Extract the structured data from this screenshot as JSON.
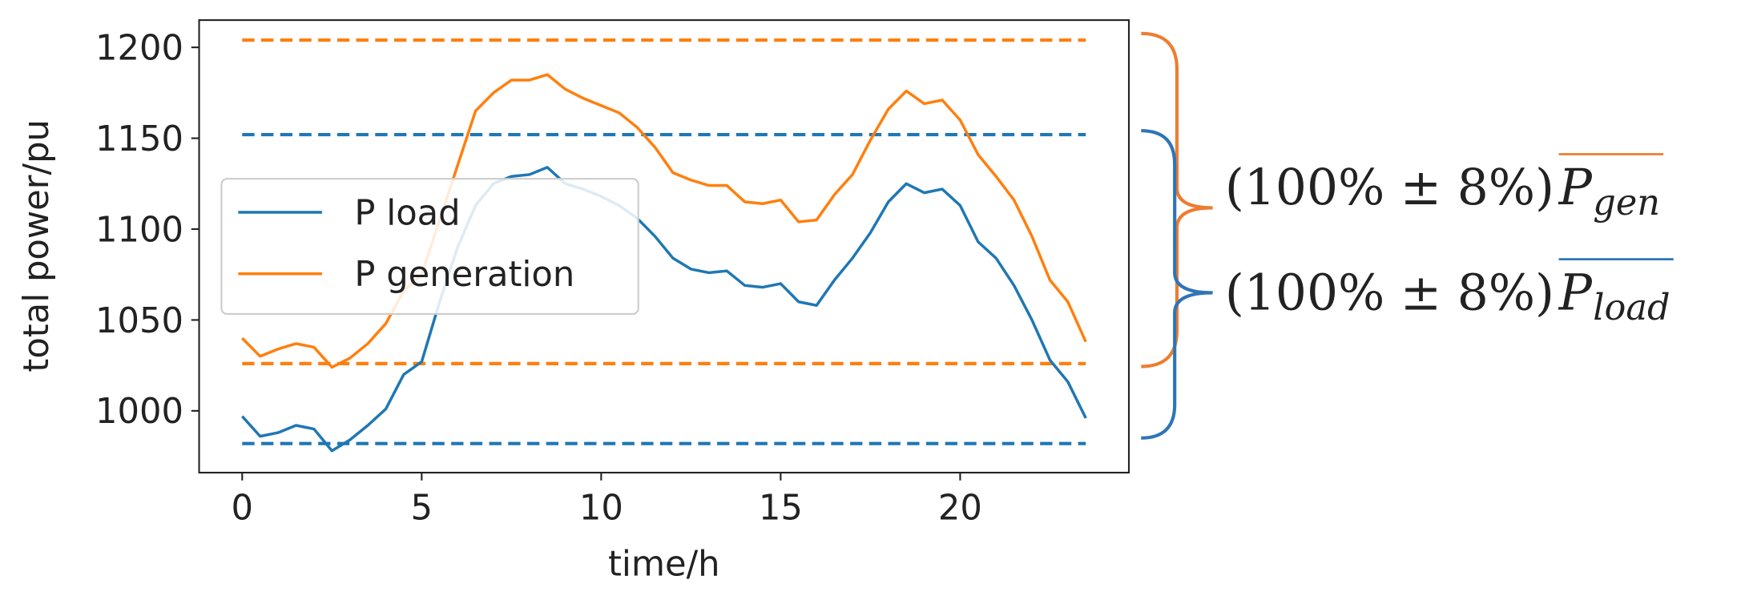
{
  "chart_data": {
    "type": "line",
    "xlabel": "time/h",
    "ylabel": "total power/pu",
    "x": [
      0,
      0.5,
      1,
      1.5,
      2,
      2.5,
      3,
      3.5,
      4,
      4.5,
      5,
      5.5,
      6,
      6.5,
      7,
      7.5,
      8,
      8.5,
      9,
      9.5,
      10,
      10.5,
      11,
      11.5,
      12,
      12.5,
      13,
      13.5,
      14,
      14.5,
      15,
      15.5,
      16,
      16.5,
      17,
      17.5,
      18,
      18.5,
      19,
      19.5,
      20,
      20.5,
      21,
      21.5,
      22,
      22.5,
      23,
      23.5
    ],
    "series": [
      {
        "name": "P load",
        "color": "#1f77b4",
        "values": [
          997,
          986,
          988,
          992,
          990,
          978,
          984,
          992,
          1001,
          1020,
          1027,
          1060,
          1090,
          1113,
          1125,
          1129,
          1130,
          1134,
          1125,
          1122,
          1118,
          1113,
          1106,
          1096,
          1084,
          1078,
          1076,
          1077,
          1069,
          1068,
          1070,
          1060,
          1058,
          1072,
          1084,
          1098,
          1115,
          1125,
          1120,
          1122,
          1113,
          1093,
          1084,
          1069,
          1050,
          1028,
          1016,
          996
        ]
      },
      {
        "name": "P generation",
        "color": "#ff7f0e",
        "values": [
          1040,
          1030,
          1034,
          1037,
          1035,
          1024,
          1029,
          1037,
          1048,
          1066,
          1075,
          1105,
          1135,
          1165,
          1175,
          1182,
          1182,
          1185,
          1177,
          1172,
          1168,
          1164,
          1156,
          1145,
          1131,
          1127,
          1124,
          1124,
          1115,
          1114,
          1116,
          1104,
          1105,
          1119,
          1130,
          1149,
          1166,
          1176,
          1169,
          1171,
          1160,
          1141,
          1129,
          1116,
          1096,
          1072,
          1060,
          1038
        ]
      }
    ],
    "hlines": [
      {
        "value": 1204,
        "color": "#ff7f0e",
        "style": "dashed"
      },
      {
        "value": 1152,
        "color": "#1f77b4",
        "style": "dashed"
      },
      {
        "value": 1026,
        "color": "#ff7f0e",
        "style": "dashed"
      },
      {
        "value": 982,
        "color": "#1f77b4",
        "style": "dashed"
      }
    ],
    "xlim": [
      -1.2,
      24.7
    ],
    "ylim": [
      966,
      1215
    ],
    "xticks": [
      0,
      5,
      10,
      15,
      20
    ],
    "yticks": [
      1000,
      1050,
      1100,
      1150,
      1200
    ],
    "legend": "center left",
    "annotations": [
      {
        "text": "(100% ± 8%)",
        "symbol": "P",
        "subscript": "gen",
        "color": "#ed7d31"
      },
      {
        "text": "(100% ± 8%)",
        "symbol": "P",
        "subscript": "load",
        "color": "#2e75b6"
      }
    ]
  }
}
